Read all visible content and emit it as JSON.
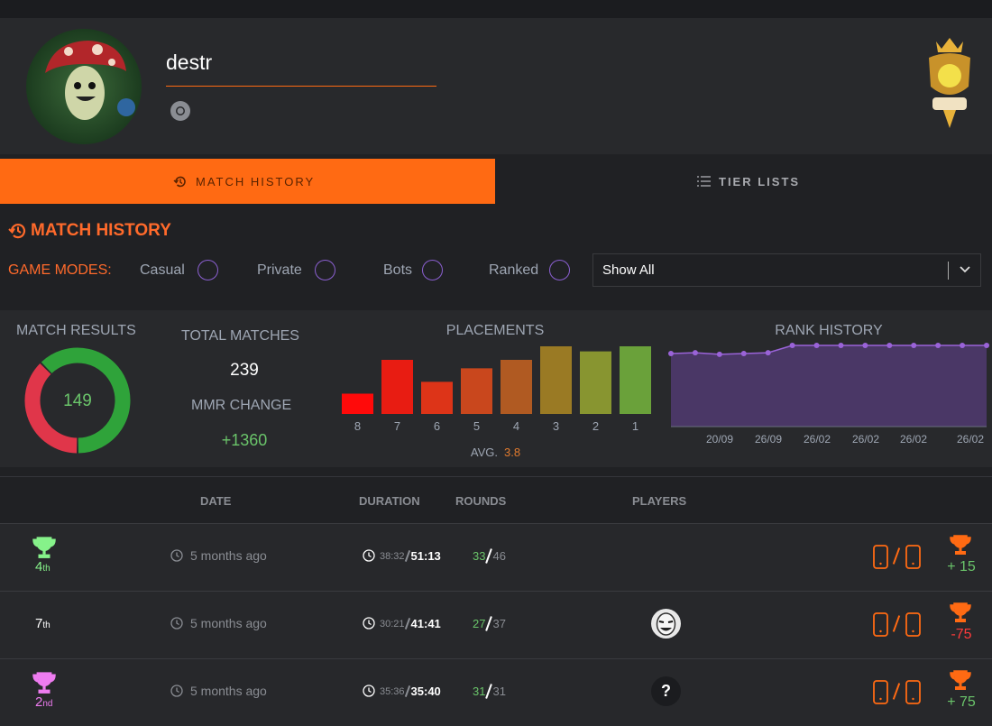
{
  "profile": {
    "name": "destr"
  },
  "tabs": [
    "MATCH HISTORY",
    "TIER LISTS"
  ],
  "section_title": "MATCH HISTORY",
  "filters": {
    "label": "GAME MODES:",
    "modes": [
      "Casual",
      "Private",
      "Bots",
      "Ranked"
    ],
    "select": "Show All"
  },
  "stats": {
    "match_results": {
      "type": "donut",
      "title": "MATCH RESULTS",
      "values": [
        149,
        90
      ],
      "colors": [
        "#2fa33a",
        "#e0364a"
      ],
      "center_label": 149
    },
    "total_matches": {
      "title": "TOTAL MATCHES",
      "value": 239
    },
    "mmr_change": {
      "title": "MMR CHANGE",
      "value": "+1360"
    },
    "placements": {
      "type": "bar",
      "title": "PLACEMENTS",
      "categories": [
        "8",
        "7",
        "6",
        "5",
        "4",
        "3",
        "2",
        "1"
      ],
      "values": [
        12,
        32,
        19,
        27,
        32,
        40,
        37,
        40
      ],
      "colors": [
        "#ff0a0a",
        "#e81c12",
        "#dd3418",
        "#c9471d",
        "#b05a22",
        "#9a7a24",
        "#889530",
        "#6aa13a"
      ],
      "ylim": [
        0,
        40
      ],
      "avg_label": "AVG.",
      "avg": 3.8
    },
    "rank_history": {
      "type": "line",
      "title": "RANK HISTORY",
      "values": [
        90,
        91,
        89,
        90,
        91,
        100,
        100,
        100,
        100,
        100,
        100,
        100,
        100,
        100
      ],
      "ylim": [
        0,
        100
      ],
      "color": "#9a63d8",
      "fill": "#4a3766",
      "x_labels": [
        "20/09",
        "26/09",
        "26/02",
        "26/02",
        "26/02",
        "26/02"
      ]
    }
  },
  "table": {
    "headers": [
      "DATE",
      "DURATION",
      "ROUNDS",
      "PLAYERS"
    ],
    "rows": [
      {
        "placement": "4",
        "suffix": "th",
        "trophy_color": "#86f28a",
        "date": "5 months ago",
        "time": "38:32",
        "duration": "51:13",
        "rounds_won": "33",
        "rounds_total": "46",
        "players": [],
        "mmr": "+ 15",
        "mmr_color": "#6ac46a"
      },
      {
        "placement": "7",
        "suffix": "th",
        "date": "5 months ago",
        "time": "30:21",
        "duration": "41:41",
        "rounds_won": "27",
        "rounds_total": "37",
        "players": [
          {
            "type": "avatar"
          }
        ],
        "mmr": "-75",
        "mmr_color": "#ff3b3b"
      },
      {
        "placement": "2",
        "suffix": "nd",
        "trophy_color": "#ee7cf0",
        "date": "5 months ago",
        "time": "35:36",
        "duration": "35:40",
        "rounds_won": "31",
        "rounds_total": "31",
        "players": [
          {
            "type": "unknown",
            "label": "?"
          }
        ],
        "mmr": "+ 75",
        "mmr_color": "#6ac46a"
      }
    ]
  }
}
